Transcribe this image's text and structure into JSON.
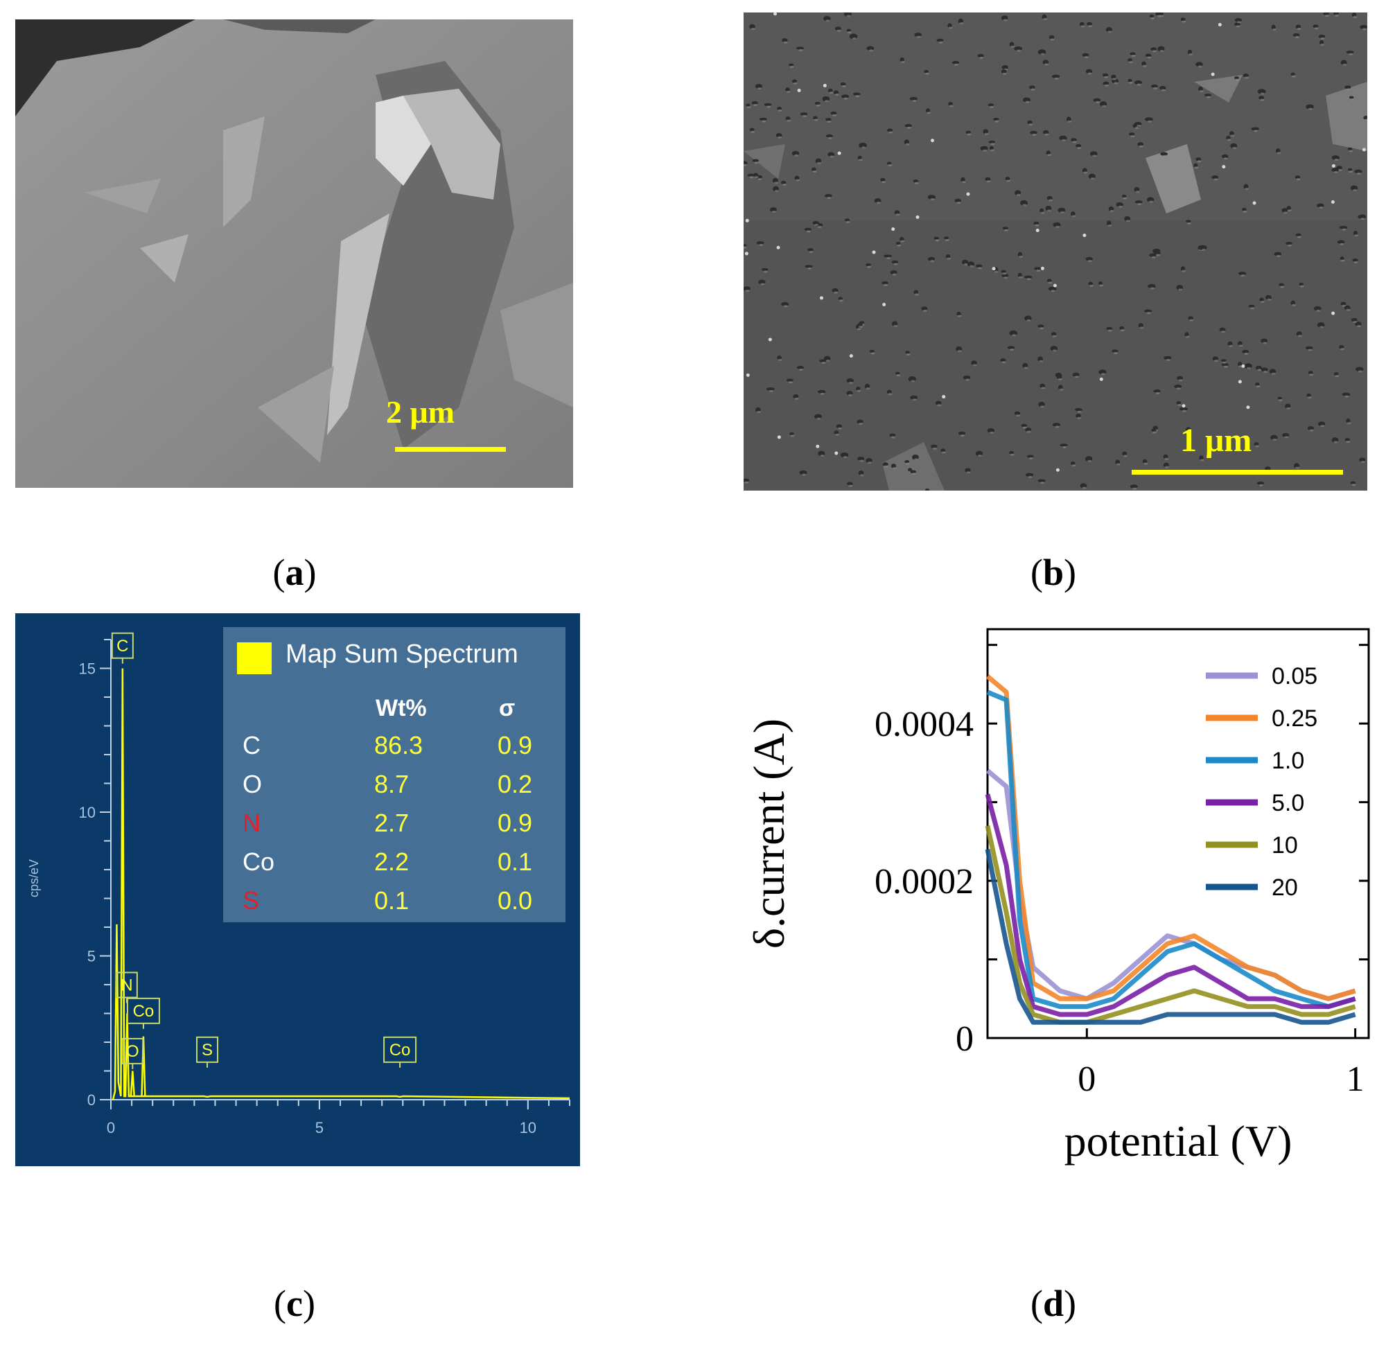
{
  "panels": {
    "a": {
      "caption": "a",
      "scale_bar": "2 μm"
    },
    "b": {
      "caption": "b",
      "scale_bar": "1 μm"
    },
    "c": {
      "caption": "c",
      "legend_title": "Map Sum Spectrum",
      "headers": {
        "wt": "Wt%",
        "sigma": "σ"
      },
      "rows": [
        {
          "element": "C",
          "wt": "86.3",
          "sigma": "0.9",
          "highlight": false
        },
        {
          "element": "O",
          "wt": "8.7",
          "sigma": "0.2",
          "highlight": false
        },
        {
          "element": "N",
          "wt": "2.7",
          "sigma": "0.9",
          "highlight": true
        },
        {
          "element": "Co",
          "wt": "2.2",
          "sigma": "0.1",
          "highlight": false
        },
        {
          "element": "S",
          "wt": "0.1",
          "sigma": "0.0",
          "highlight": true
        }
      ],
      "colors": {
        "background": "#0b3a68",
        "spectrum": "#ffff00",
        "highlight": "#e0202a"
      }
    },
    "d": {
      "caption": "d"
    }
  },
  "chart_data": [
    {
      "type": "line",
      "title": "Map Sum Spectrum",
      "xlabel": "",
      "ylabel": "cps/eV",
      "xlim": [
        0,
        11
      ],
      "ylim": [
        0,
        16
      ],
      "xticks": [
        "0",
        "5",
        "10"
      ],
      "yticks": [
        "0",
        "5",
        "10",
        "15"
      ],
      "peaks": [
        {
          "label": "C",
          "x": 0.28,
          "y": 15.0
        },
        {
          "label": "N",
          "x": 0.39,
          "y": 3.0
        },
        {
          "label": "Co",
          "x": 0.78,
          "y": 2.2
        },
        {
          "label": "O",
          "x": 0.52,
          "y": 1.0
        },
        {
          "label": "S",
          "x": 2.31,
          "y": 0.1
        },
        {
          "label": "Co",
          "x": 6.93,
          "y": 0.1
        }
      ]
    },
    {
      "type": "line",
      "title": "",
      "xlabel": "potential (V)",
      "ylabel": "δ.current (A)",
      "xlim": [
        -0.37,
        1.05
      ],
      "ylim": [
        0,
        0.00052
      ],
      "xticks": [
        "0",
        "1"
      ],
      "yticks": [
        "0",
        "0.0002",
        "0.0004"
      ],
      "series": [
        {
          "name": "0.05",
          "color": "#9a92d4",
          "x": [
            -0.37,
            -0.3,
            -0.25,
            -0.2,
            -0.1,
            0.0,
            0.1,
            0.2,
            0.3,
            0.4,
            0.5,
            0.6,
            0.7,
            0.8,
            0.9,
            1.0
          ],
          "y": [
            0.00034,
            0.00032,
            0.00018,
            9e-05,
            6e-05,
            5e-05,
            7e-05,
            0.0001,
            0.00013,
            0.00012,
            0.0001,
            9e-05,
            8e-05,
            6e-05,
            5e-05,
            6e-05
          ]
        },
        {
          "name": "0.25",
          "color": "#f4862a",
          "x": [
            -0.37,
            -0.3,
            -0.25,
            -0.2,
            -0.1,
            0.0,
            0.1,
            0.2,
            0.3,
            0.4,
            0.5,
            0.6,
            0.7,
            0.8,
            0.9,
            1.0
          ],
          "y": [
            0.00046,
            0.00044,
            0.0002,
            7e-05,
            5e-05,
            5e-05,
            6e-05,
            9e-05,
            0.00012,
            0.00013,
            0.00011,
            9e-05,
            8e-05,
            6e-05,
            5e-05,
            6e-05
          ]
        },
        {
          "name": "1.0",
          "color": "#1b8ac9",
          "x": [
            -0.37,
            -0.3,
            -0.25,
            -0.2,
            -0.1,
            0.0,
            0.1,
            0.2,
            0.3,
            0.4,
            0.5,
            0.6,
            0.7,
            0.8,
            0.9,
            1.0
          ],
          "y": [
            0.00044,
            0.00043,
            0.00015,
            5e-05,
            4e-05,
            4e-05,
            5e-05,
            8e-05,
            0.00011,
            0.00012,
            0.0001,
            8e-05,
            6e-05,
            5e-05,
            4e-05,
            5e-05
          ]
        },
        {
          "name": "5.0",
          "color": "#7a1fa6",
          "x": [
            -0.37,
            -0.3,
            -0.25,
            -0.2,
            -0.1,
            0.0,
            0.1,
            0.2,
            0.3,
            0.4,
            0.5,
            0.6,
            0.7,
            0.8,
            0.9,
            1.0
          ],
          "y": [
            0.00031,
            0.00022,
            0.0001,
            4e-05,
            3e-05,
            3e-05,
            4e-05,
            6e-05,
            8e-05,
            9e-05,
            7e-05,
            5e-05,
            5e-05,
            4e-05,
            4e-05,
            5e-05
          ]
        },
        {
          "name": "10",
          "color": "#939020",
          "x": [
            -0.37,
            -0.3,
            -0.25,
            -0.2,
            -0.1,
            0.0,
            0.1,
            0.2,
            0.3,
            0.4,
            0.5,
            0.6,
            0.7,
            0.8,
            0.9,
            1.0
          ],
          "y": [
            0.00027,
            0.00016,
            7e-05,
            3e-05,
            2e-05,
            2e-05,
            3e-05,
            4e-05,
            5e-05,
            6e-05,
            5e-05,
            4e-05,
            4e-05,
            3e-05,
            3e-05,
            4e-05
          ]
        },
        {
          "name": "20",
          "color": "#17558f",
          "x": [
            -0.37,
            -0.3,
            -0.25,
            -0.2,
            -0.1,
            0.0,
            0.1,
            0.2,
            0.3,
            0.4,
            0.5,
            0.6,
            0.7,
            0.8,
            0.9,
            1.0
          ],
          "y": [
            0.00024,
            0.00012,
            5e-05,
            2e-05,
            2e-05,
            2e-05,
            2e-05,
            2e-05,
            3e-05,
            3e-05,
            3e-05,
            3e-05,
            3e-05,
            2e-05,
            2e-05,
            3e-05
          ]
        }
      ]
    }
  ]
}
